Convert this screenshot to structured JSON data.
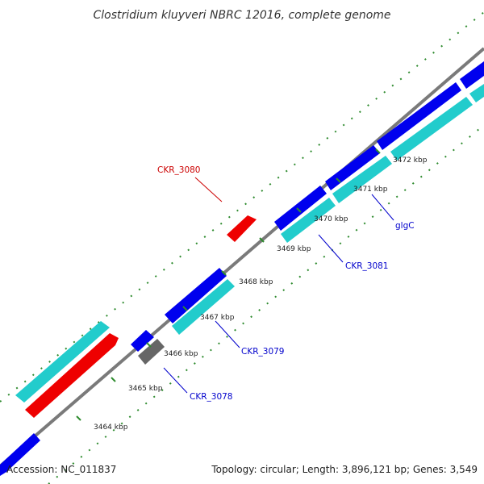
{
  "title": "Clostridium kluyveri NBRC 12016, complete genome",
  "footer": {
    "accession": "Accession: NC_011837",
    "summary": "Topology: circular; Length: 3,896,121 bp; Genes: 3,549"
  },
  "colors": {
    "backbone": "#7a7a7a",
    "tick_dots": "#2e8b2e",
    "forward_cds": "#0000ee",
    "forward_rna": "#ee0000",
    "other": "#666666",
    "reverse_cds": "#22cccc",
    "label_blue": "#0000cc",
    "label_red": "#cc0000"
  },
  "ticks": [
    {
      "label": "3464 kbp",
      "kbp": 3464
    },
    {
      "label": "3465 kbp",
      "kbp": 3465
    },
    {
      "label": "3466 kbp",
      "kbp": 3466
    },
    {
      "label": "3467 kbp",
      "kbp": 3467
    },
    {
      "label": "3468 kbp",
      "kbp": 3468
    },
    {
      "label": "3469 kbp",
      "kbp": 3469
    },
    {
      "label": "3470 kbp",
      "kbp": 3470
    },
    {
      "label": "3471 kbp",
      "kbp": 3471
    },
    {
      "label": "3472 kbp",
      "kbp": 3472
    }
  ],
  "gene_labels": [
    {
      "name": "CKR_3078",
      "color": "#0000cc"
    },
    {
      "name": "CKR_3079",
      "color": "#0000cc"
    },
    {
      "name": "CKR_3080",
      "color": "#cc0000"
    },
    {
      "name": "CKR_3081",
      "color": "#0000cc"
    },
    {
      "name": "glgC",
      "color": "#0000cc"
    }
  ]
}
